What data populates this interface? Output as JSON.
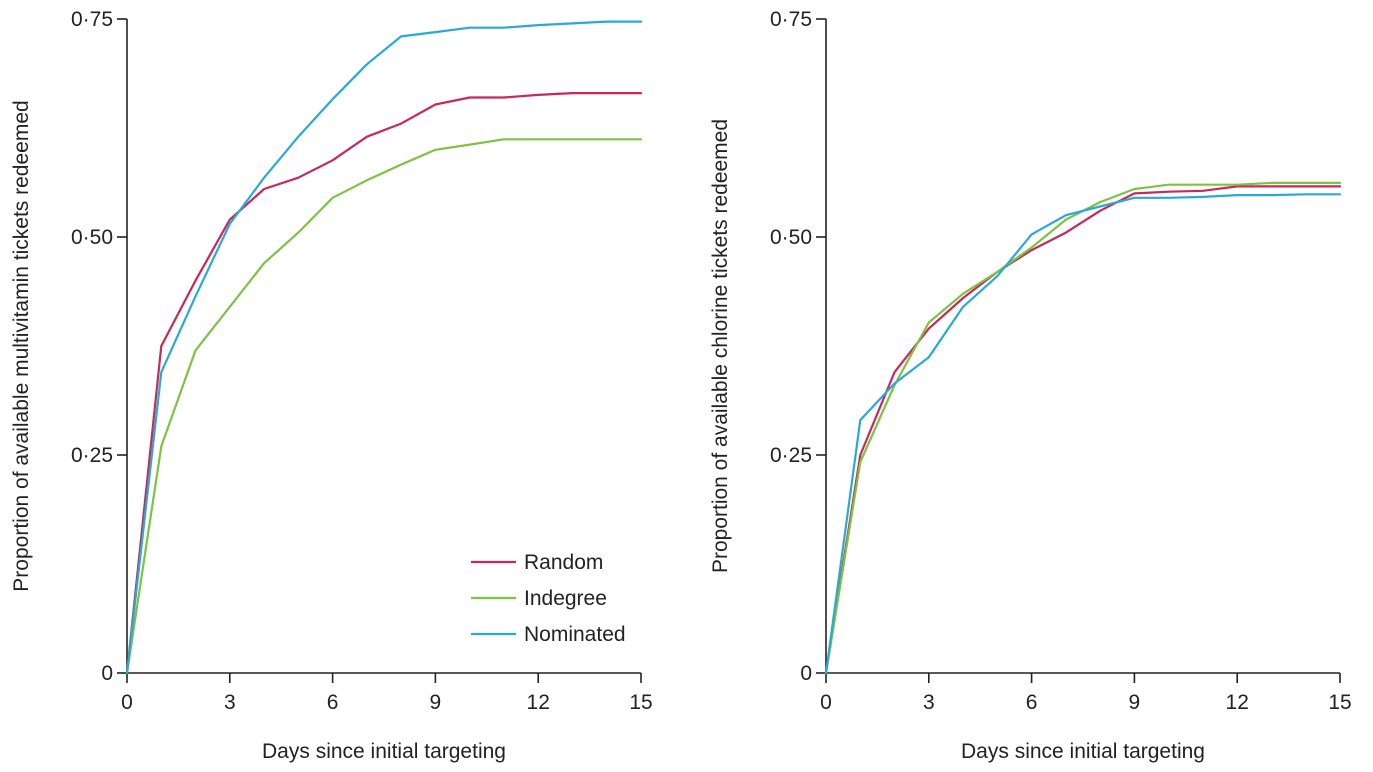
{
  "chart_data": [
    {
      "type": "line",
      "title": "",
      "xlabel": "Days since initial targeting",
      "ylabel": "Proportion of available multivitamin tickets redeemed",
      "xlim": [
        0,
        15
      ],
      "ylim": [
        0,
        0.75
      ],
      "x_ticks": [
        0,
        3,
        6,
        9,
        12,
        15
      ],
      "x_tick_labels": [
        "0",
        "3",
        "6",
        "9",
        "12",
        "15"
      ],
      "y_ticks": [
        0,
        0.25,
        0.5,
        0.75
      ],
      "y_tick_labels": [
        "0",
        "0·25",
        "0·50",
        "0·75"
      ],
      "grid": false,
      "legend": {
        "position": "bottom-right"
      },
      "x": [
        0,
        1,
        2,
        3,
        4,
        5,
        6,
        7,
        8,
        9,
        10,
        11,
        12,
        13,
        14,
        15
      ],
      "series": [
        {
          "name": "Random",
          "color": "#c8285a",
          "values": [
            0,
            0.375,
            0.45,
            0.52,
            0.555,
            0.568,
            0.588,
            0.615,
            0.63,
            0.652,
            0.66,
            0.66,
            0.663,
            0.665,
            0.665,
            0.665
          ]
        },
        {
          "name": "Indegree",
          "color": "#7dc242",
          "values": [
            0,
            0.26,
            0.37,
            0.42,
            0.47,
            0.505,
            0.545,
            0.565,
            0.583,
            0.6,
            0.606,
            0.612,
            0.612,
            0.612,
            0.612,
            0.612
          ]
        },
        {
          "name": "Nominated",
          "color": "#2aa9d6",
          "values": [
            0,
            0.345,
            0.432,
            0.515,
            0.568,
            0.615,
            0.658,
            0.698,
            0.73,
            0.735,
            0.74,
            0.74,
            0.743,
            0.745,
            0.747,
            0.747
          ]
        }
      ]
    },
    {
      "type": "line",
      "title": "",
      "xlabel": "Days since initial targeting",
      "ylabel": "Proportion of available chlorine tickets redeemed",
      "xlim": [
        0,
        15
      ],
      "ylim": [
        0,
        0.75
      ],
      "x_ticks": [
        0,
        3,
        6,
        9,
        12,
        15
      ],
      "x_tick_labels": [
        "0",
        "3",
        "6",
        "9",
        "12",
        "15"
      ],
      "y_ticks": [
        0,
        0.25,
        0.5,
        0.75
      ],
      "y_tick_labels": [
        "0",
        "0·25",
        "0·50",
        "0·75"
      ],
      "grid": false,
      "x": [
        0,
        1,
        2,
        3,
        4,
        5,
        6,
        7,
        8,
        9,
        10,
        11,
        12,
        13,
        14,
        15
      ],
      "series": [
        {
          "name": "Random",
          "color": "#c8285a",
          "values": [
            0,
            0.25,
            0.345,
            0.395,
            0.43,
            0.46,
            0.485,
            0.505,
            0.53,
            0.55,
            0.552,
            0.553,
            0.558,
            0.558,
            0.558,
            0.558
          ]
        },
        {
          "name": "Indegree",
          "color": "#7dc242",
          "values": [
            0,
            0.242,
            0.33,
            0.402,
            0.435,
            0.46,
            0.488,
            0.52,
            0.54,
            0.555,
            0.56,
            0.56,
            0.56,
            0.562,
            0.562,
            0.562
          ]
        },
        {
          "name": "Nominated",
          "color": "#2aa9d6",
          "values": [
            0,
            0.29,
            0.332,
            0.362,
            0.42,
            0.455,
            0.503,
            0.525,
            0.535,
            0.545,
            0.545,
            0.546,
            0.548,
            0.548,
            0.549,
            0.549
          ]
        }
      ]
    }
  ]
}
